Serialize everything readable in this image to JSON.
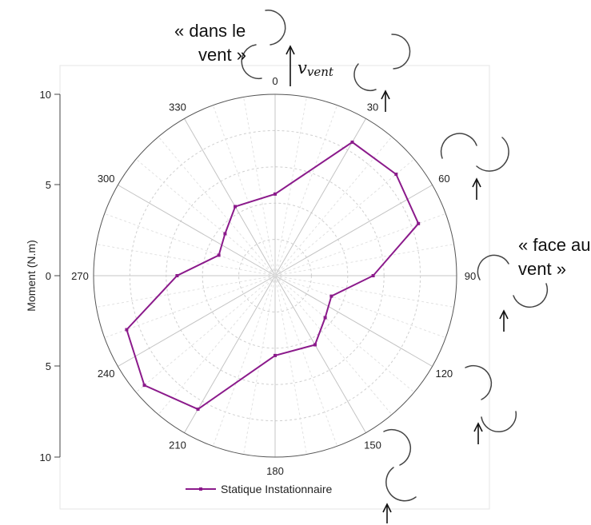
{
  "annotations": {
    "dans_le_vent_line1": "« dans le",
    "dans_le_vent_line2": "vent »",
    "face_au_vent_line1": "« face au",
    "face_au_vent_line2": "vent »",
    "velocity_symbol": "v",
    "velocity_subscript": "vent"
  },
  "chart_data": {
    "type": "polar-line",
    "ylabel": "Moment (N.m)",
    "radial_range": [
      0,
      10
    ],
    "radial_ticks": [
      "10",
      "5",
      "0",
      "5",
      "10"
    ],
    "angle_ticks": [
      "0",
      "30",
      "60",
      "90",
      "120",
      "150",
      "180",
      "210",
      "240",
      "270",
      "300",
      "330"
    ],
    "grid": true,
    "legend_position": "bottom",
    "series": [
      {
        "name": "Statique Instationnaire",
        "color": "#8b1a8b",
        "points": [
          {
            "angle": 0,
            "r": 4.5
          },
          {
            "angle": 30,
            "r": 8.5
          },
          {
            "angle": 50,
            "r": 8.7
          },
          {
            "angle": 70,
            "r": 8.4
          },
          {
            "angle": 90,
            "r": 5.4
          },
          {
            "angle": 110,
            "r": 3.3
          },
          {
            "angle": 130,
            "r": 3.6
          },
          {
            "angle": 150,
            "r": 4.4
          },
          {
            "angle": 180,
            "r": 4.4
          },
          {
            "angle": 210,
            "r": 8.5
          },
          {
            "angle": 230,
            "r": 9.4
          },
          {
            "angle": 250,
            "r": 8.7
          },
          {
            "angle": 270,
            "r": 5.4
          },
          {
            "angle": 290,
            "r": 3.3
          },
          {
            "angle": 310,
            "r": 3.6
          },
          {
            "angle": 330,
            "r": 4.4
          }
        ]
      }
    ]
  }
}
